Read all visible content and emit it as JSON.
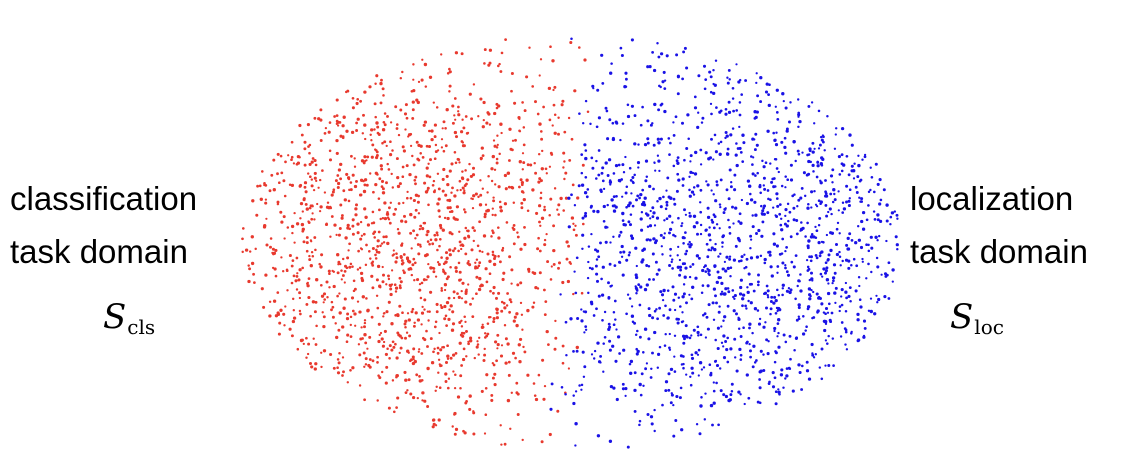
{
  "left_domain": {
    "line1": "classification",
    "line2": "task domain",
    "symbol": "S",
    "subscript": "cls",
    "color": "#e8392e"
  },
  "right_domain": {
    "line1": "localization",
    "line2": "task domain",
    "symbol": "S",
    "subscript": "loc",
    "color": "#1a12e6"
  }
}
